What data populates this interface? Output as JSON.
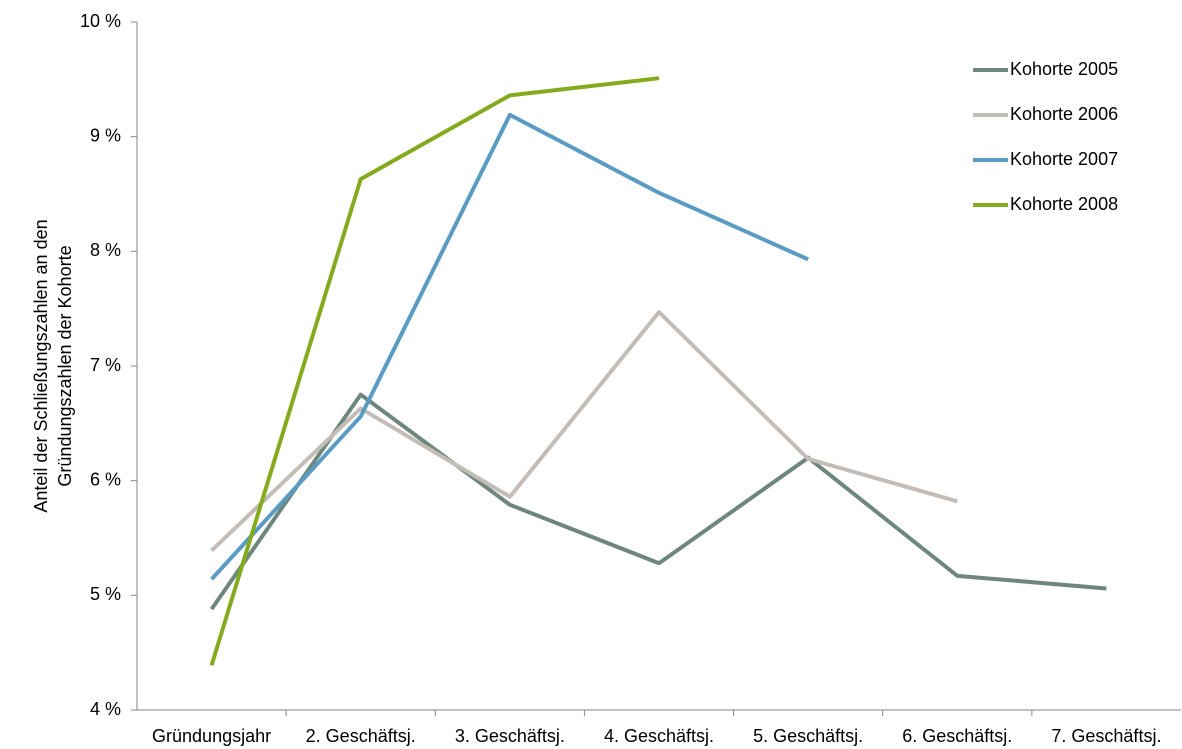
{
  "chart_data": {
    "type": "line",
    "y_label_lines": [
      "Anteil der Schließungszahlen an den",
      "Gründungszahlen  der Kohorte"
    ],
    "categories": [
      "Gründungsjahr",
      "2. Geschäftsj.",
      "3. Geschäftsj.",
      "4. Geschäftsj.",
      "5. Geschäftsj.",
      "6. Geschäftsj.",
      "7. Geschäftsj."
    ],
    "series": [
      {
        "name": "Kohorte 2005",
        "color": "#6e877c",
        "values": [
          4.88,
          6.75,
          5.79,
          5.28,
          6.2,
          5.17,
          5.06
        ]
      },
      {
        "name": "Kohorte 2006",
        "color": "#c4bdb7",
        "values": [
          5.39,
          6.63,
          5.86,
          7.47,
          6.19,
          5.82,
          null
        ]
      },
      {
        "name": "Kohorte 2007",
        "color": "#5a9bc4",
        "values": [
          5.14,
          6.56,
          9.19,
          8.51,
          7.93,
          null,
          null
        ]
      },
      {
        "name": "Kohorte 2008",
        "color": "#84aa1e",
        "values": [
          4.39,
          8.63,
          9.36,
          9.51,
          null,
          null,
          null
        ]
      }
    ],
    "ylim": [
      4,
      10
    ],
    "yticks": [
      {
        "value": 4,
        "label": "4 %"
      },
      {
        "value": 5,
        "label": "5 %"
      },
      {
        "value": 6,
        "label": "6 %"
      },
      {
        "value": 7,
        "label": "7 %"
      },
      {
        "value": 8,
        "label": "8 %"
      },
      {
        "value": 9,
        "label": "9 %"
      },
      {
        "value": 10,
        "label": "10 %"
      }
    ],
    "grid": false,
    "legend": "top-right"
  }
}
